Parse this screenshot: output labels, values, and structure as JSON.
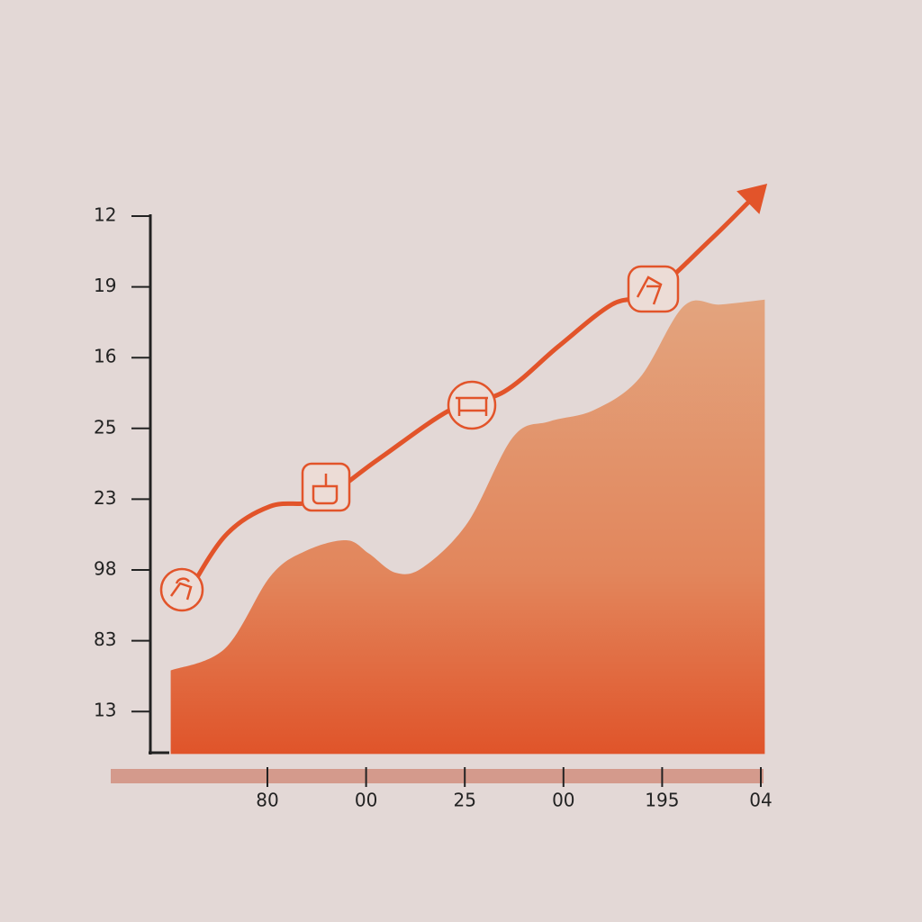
{
  "chart_data": {
    "type": "area",
    "xlim": [
      0,
      6.05
    ],
    "ylim": [
      0.4,
      8
    ],
    "xticks": [
      {
        "value": 1,
        "label": "80"
      },
      {
        "value": 2,
        "label": "00"
      },
      {
        "value": 3,
        "label": "25"
      },
      {
        "value": 4,
        "label": "00"
      },
      {
        "value": 5,
        "label": "195"
      },
      {
        "value": 6,
        "label": "04"
      }
    ],
    "yticks": [
      {
        "value": 1,
        "label": "13"
      },
      {
        "value": 2,
        "label": "83"
      },
      {
        "value": 3,
        "label": "98"
      },
      {
        "value": 4,
        "label": "23"
      },
      {
        "value": 5,
        "label": "25"
      },
      {
        "value": 6,
        "label": "16"
      },
      {
        "value": 7,
        "label": "19"
      },
      {
        "value": 8,
        "label": "12"
      }
    ],
    "series": [
      {
        "type": "area",
        "color": "#e0542a",
        "x": [
          0.02,
          0.57,
          1.03,
          1.39,
          1.8,
          2.03,
          2.3,
          2.58,
          3.03,
          3.49,
          3.86,
          4.31,
          4.77,
          5.22,
          5.59,
          6.04
        ],
        "values": [
          1.58,
          1.89,
          2.91,
          3.27,
          3.42,
          3.23,
          2.96,
          3.04,
          3.67,
          4.88,
          5.1,
          5.26,
          5.71,
          6.73,
          6.75,
          6.82
        ]
      },
      {
        "type": "line",
        "color": "#e2542a",
        "x": [
          0.16,
          0.57,
          1.03,
          1.53,
          2.12,
          2.85,
          3.4,
          3.95,
          4.49,
          4.9,
          5.5,
          5.87
        ],
        "values": [
          2.59,
          3.48,
          3.9,
          3.99,
          4.56,
          5.26,
          5.52,
          6.16,
          6.75,
          6.92,
          7.68,
          8.19
        ]
      }
    ]
  }
}
